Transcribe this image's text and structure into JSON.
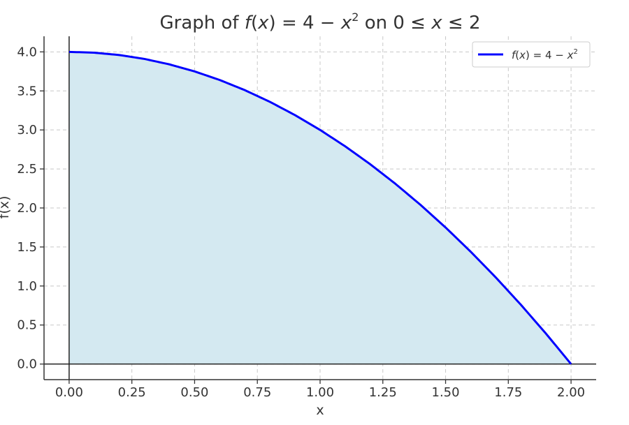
{
  "chart_data": {
    "type": "area",
    "title_prefix": "Graph of ",
    "title_fx": "f",
    "title_mid1": "(",
    "title_x1": "x",
    "title_mid2": ") = 4 − ",
    "title_x2": "x",
    "title_exp": "2",
    "title_mid3": " on 0 ≤ ",
    "title_x3": "x",
    "title_end": " ≤ 2",
    "xlabel": "x",
    "ylabel": "f(x)",
    "xlim": [
      -0.1,
      2.1
    ],
    "ylim": [
      -0.2,
      4.2
    ],
    "x_ticks": [
      0.0,
      0.25,
      0.5,
      0.75,
      1.0,
      1.25,
      1.5,
      1.75,
      2.0
    ],
    "x_tick_labels": [
      "0.00",
      "0.25",
      "0.50",
      "0.75",
      "1.00",
      "1.25",
      "1.50",
      "1.75",
      "2.00"
    ],
    "y_ticks": [
      0.0,
      0.5,
      1.0,
      1.5,
      2.0,
      2.5,
      3.0,
      3.5,
      4.0
    ],
    "y_tick_labels": [
      "0.0",
      "0.5",
      "1.0",
      "1.5",
      "2.0",
      "2.5",
      "3.0",
      "3.5",
      "4.0"
    ],
    "grid": true,
    "legend_placement": "top-right",
    "series": [
      {
        "name": "f(x) = 4 − x²",
        "legend_fx": "f",
        "legend_mid1": "(",
        "legend_x1": "x",
        "legend_mid2": ") = 4 − ",
        "legend_x2": "x",
        "legend_exp": "2",
        "color": "#0000ff",
        "fill_color": "#d4e9f1",
        "x": [
          0.0,
          0.1,
          0.2,
          0.3,
          0.4,
          0.5,
          0.6,
          0.7,
          0.8,
          0.9,
          1.0,
          1.1,
          1.2,
          1.3,
          1.4,
          1.5,
          1.6,
          1.7,
          1.8,
          1.9,
          2.0
        ],
        "y": [
          4.0,
          3.99,
          3.96,
          3.91,
          3.84,
          3.75,
          3.64,
          3.51,
          3.36,
          3.19,
          3.0,
          2.79,
          2.56,
          2.31,
          2.04,
          1.75,
          1.44,
          1.11,
          0.76,
          0.39,
          0.0
        ]
      }
    ]
  }
}
